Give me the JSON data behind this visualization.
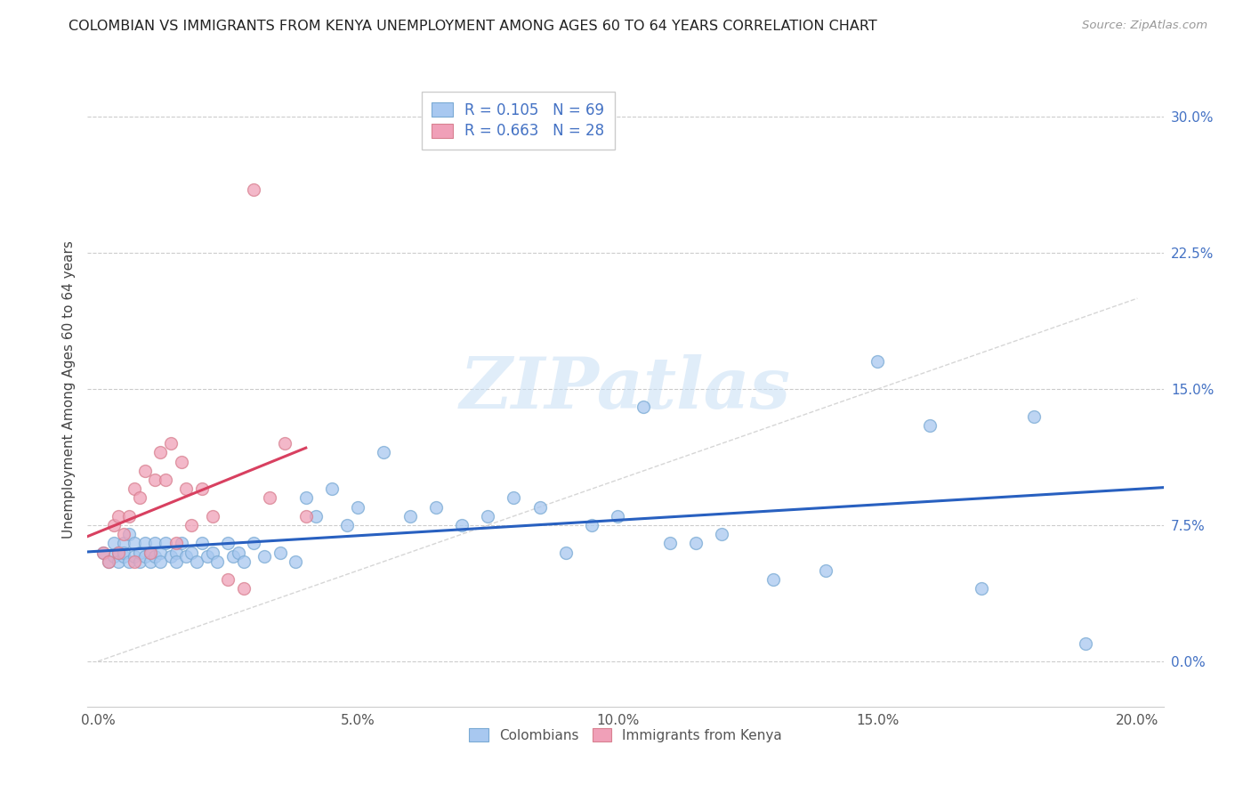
{
  "title": "COLOMBIAN VS IMMIGRANTS FROM KENYA UNEMPLOYMENT AMONG AGES 60 TO 64 YEARS CORRELATION CHART",
  "source": "Source: ZipAtlas.com",
  "ylabel": "Unemployment Among Ages 60 to 64 years",
  "xlabel_ticks": [
    "0.0%",
    "5.0%",
    "10.0%",
    "15.0%",
    "20.0%"
  ],
  "xlabel_vals": [
    0.0,
    0.05,
    0.1,
    0.15,
    0.2
  ],
  "ylabel_ticks": [
    "0.0%",
    "7.5%",
    "15.0%",
    "22.5%",
    "30.0%"
  ],
  "ylabel_vals": [
    0.0,
    0.075,
    0.15,
    0.225,
    0.3
  ],
  "xlim": [
    -0.002,
    0.205
  ],
  "ylim": [
    -0.025,
    0.325
  ],
  "blue_color": "#a8c8f0",
  "pink_color": "#f0a0b8",
  "blue_edge": "#7aaad4",
  "pink_edge": "#d88090",
  "blue_line_color": "#2860c0",
  "pink_line_color": "#d84060",
  "diag_line_color": "#cccccc",
  "watermark": "ZIPatlas",
  "background_color": "#ffffff",
  "grid_color": "#cccccc",
  "colombians_x": [
    0.001,
    0.002,
    0.003,
    0.003,
    0.004,
    0.004,
    0.005,
    0.005,
    0.005,
    0.006,
    0.006,
    0.007,
    0.007,
    0.008,
    0.008,
    0.009,
    0.009,
    0.01,
    0.01,
    0.011,
    0.011,
    0.012,
    0.012,
    0.013,
    0.014,
    0.015,
    0.015,
    0.016,
    0.017,
    0.018,
    0.019,
    0.02,
    0.021,
    0.022,
    0.023,
    0.025,
    0.026,
    0.027,
    0.028,
    0.03,
    0.032,
    0.035,
    0.038,
    0.04,
    0.042,
    0.045,
    0.048,
    0.05,
    0.055,
    0.06,
    0.065,
    0.07,
    0.075,
    0.08,
    0.085,
    0.09,
    0.095,
    0.1,
    0.105,
    0.11,
    0.115,
    0.12,
    0.13,
    0.14,
    0.15,
    0.16,
    0.17,
    0.18,
    0.19
  ],
  "colombians_y": [
    0.06,
    0.055,
    0.065,
    0.058,
    0.06,
    0.055,
    0.065,
    0.058,
    0.06,
    0.055,
    0.07,
    0.058,
    0.065,
    0.055,
    0.06,
    0.065,
    0.058,
    0.06,
    0.055,
    0.065,
    0.058,
    0.06,
    0.055,
    0.065,
    0.058,
    0.06,
    0.055,
    0.065,
    0.058,
    0.06,
    0.055,
    0.065,
    0.058,
    0.06,
    0.055,
    0.065,
    0.058,
    0.06,
    0.055,
    0.065,
    0.058,
    0.06,
    0.055,
    0.09,
    0.08,
    0.095,
    0.075,
    0.085,
    0.115,
    0.08,
    0.085,
    0.075,
    0.08,
    0.09,
    0.085,
    0.06,
    0.075,
    0.08,
    0.14,
    0.065,
    0.065,
    0.07,
    0.045,
    0.05,
    0.165,
    0.13,
    0.04,
    0.135,
    0.01
  ],
  "kenya_x": [
    0.001,
    0.002,
    0.003,
    0.004,
    0.004,
    0.005,
    0.006,
    0.007,
    0.007,
    0.008,
    0.009,
    0.01,
    0.011,
    0.012,
    0.013,
    0.014,
    0.015,
    0.016,
    0.017,
    0.018,
    0.02,
    0.022,
    0.025,
    0.028,
    0.03,
    0.033,
    0.036,
    0.04
  ],
  "kenya_y": [
    0.06,
    0.055,
    0.075,
    0.08,
    0.06,
    0.07,
    0.08,
    0.055,
    0.095,
    0.09,
    0.105,
    0.06,
    0.1,
    0.115,
    0.1,
    0.12,
    0.065,
    0.11,
    0.095,
    0.075,
    0.095,
    0.08,
    0.045,
    0.04,
    0.26,
    0.09,
    0.12,
    0.08
  ]
}
